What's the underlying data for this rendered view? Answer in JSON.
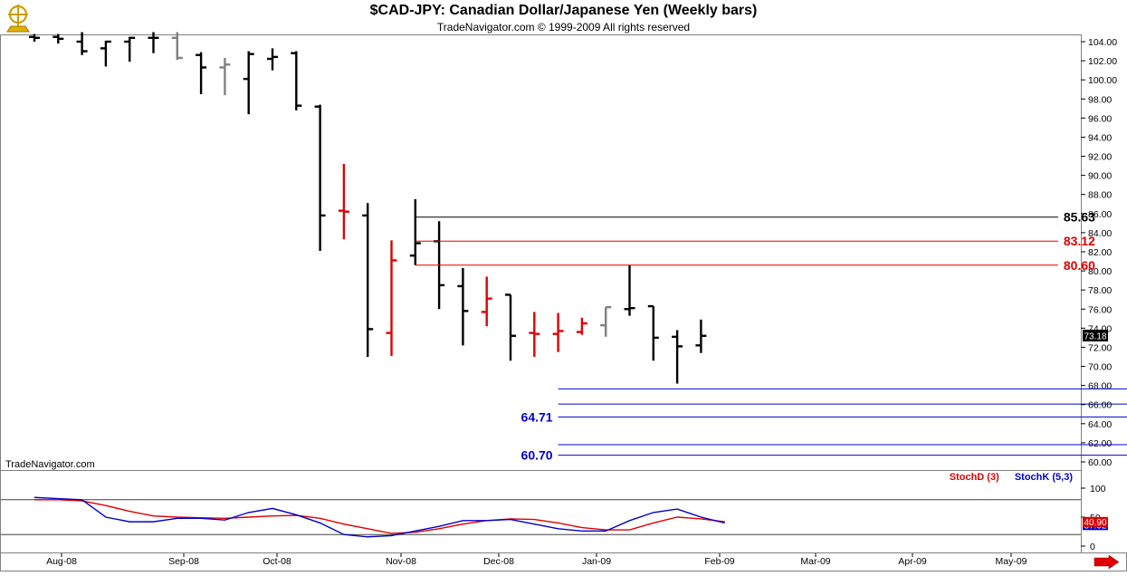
{
  "header": {
    "title": "$CAD-JPY:  Canadian Dollar/Japanese Yen  (Weekly bars)",
    "subtitle": "TradeNavigator.com © 1999-2009 All rights reserved"
  },
  "watermark": "TradeNavigator.com",
  "colors": {
    "up_bar": "#000000",
    "down_bar": "#e00000",
    "neutral_bar": "#808080",
    "fib_black": "#000000",
    "fib_red": "#e00000",
    "fib_blue": "#0000cc",
    "stoch_d": "#e00000",
    "stoch_k": "#0000cc"
  },
  "chart_data": {
    "type": "ohlc",
    "x_labels": [
      "Aug-08",
      "Sep-08",
      "Oct-08",
      "Nov-08",
      "Dec-08",
      "Jan-09",
      "Feb-09",
      "Mar-09",
      "Apr-09",
      "May-09"
    ],
    "ylim": [
      59,
      105
    ],
    "y_ticks": [
      "104.00",
      "102.00",
      "100.00",
      "98.00",
      "96.00",
      "94.00",
      "92.00",
      "90.00",
      "88.00",
      "86.00",
      "84.00",
      "82.00",
      "80.00",
      "78.00",
      "76.00",
      "74.00",
      "72.00",
      "70.00",
      "68.00",
      "66.00",
      "64.00",
      "62.00",
      "60.00"
    ],
    "last_price": "73.18",
    "bars": [
      {
        "o": 104.5,
        "h": 104.8,
        "l": 104.0,
        "c": 104.4,
        "color": "black"
      },
      {
        "o": 104.5,
        "h": 104.8,
        "l": 103.8,
        "c": 104.3,
        "color": "black"
      },
      {
        "o": 104.0,
        "h": 105.0,
        "l": 102.6,
        "c": 103.0,
        "color": "black"
      },
      {
        "o": 103.3,
        "h": 104.1,
        "l": 101.4,
        "c": 104.0,
        "color": "black"
      },
      {
        "o": 104.0,
        "h": 104.5,
        "l": 101.9,
        "c": 104.4,
        "color": "black"
      },
      {
        "o": 104.4,
        "h": 105.0,
        "l": 102.8,
        "c": 104.4,
        "color": "black"
      },
      {
        "o": 104.4,
        "h": 105.0,
        "l": 102.1,
        "c": 102.3,
        "color": "gray"
      },
      {
        "o": 102.6,
        "h": 102.9,
        "l": 98.5,
        "c": 101.3,
        "color": "black"
      },
      {
        "o": 101.3,
        "h": 102.3,
        "l": 98.4,
        "c": 101.6,
        "color": "gray"
      },
      {
        "o": 100.1,
        "h": 103.0,
        "l": 96.4,
        "c": 102.7,
        "color": "black"
      },
      {
        "o": 102.2,
        "h": 103.3,
        "l": 101.0,
        "c": 102.4,
        "color": "black"
      },
      {
        "o": 102.8,
        "h": 103.0,
        "l": 96.8,
        "c": 97.3,
        "color": "black"
      },
      {
        "o": 97.2,
        "h": 97.4,
        "l": 82.1,
        "c": 85.8,
        "color": "black"
      },
      {
        "o": 86.3,
        "h": 91.2,
        "l": 83.3,
        "c": 86.2,
        "color": "red"
      },
      {
        "o": 85.8,
        "h": 87.1,
        "l": 71.0,
        "c": 73.9,
        "color": "black"
      },
      {
        "o": 73.5,
        "h": 83.2,
        "l": 71.1,
        "c": 81.1,
        "color": "red"
      },
      {
        "o": 81.6,
        "h": 87.5,
        "l": 80.6,
        "c": 82.9,
        "color": "black"
      },
      {
        "o": 83.1,
        "h": 85.2,
        "l": 76.0,
        "c": 78.5,
        "color": "black"
      },
      {
        "o": 78.4,
        "h": 80.3,
        "l": 72.2,
        "c": 75.8,
        "color": "black"
      },
      {
        "o": 75.7,
        "h": 79.4,
        "l": 74.2,
        "c": 77.1,
        "color": "red"
      },
      {
        "o": 77.5,
        "h": 77.5,
        "l": 70.6,
        "c": 73.2,
        "color": "black"
      },
      {
        "o": 73.5,
        "h": 75.7,
        "l": 71.0,
        "c": 73.4,
        "color": "red"
      },
      {
        "o": 73.4,
        "h": 75.6,
        "l": 71.5,
        "c": 73.7,
        "color": "red"
      },
      {
        "o": 73.6,
        "h": 75.1,
        "l": 73.3,
        "c": 74.5,
        "color": "red"
      },
      {
        "o": 74.3,
        "h": 76.2,
        "l": 73.1,
        "c": 76.2,
        "color": "gray"
      },
      {
        "o": 76.0,
        "h": 80.6,
        "l": 75.3,
        "c": 76.1,
        "color": "black"
      },
      {
        "o": 76.3,
        "h": 76.3,
        "l": 70.6,
        "c": 73.0,
        "color": "black"
      },
      {
        "o": 73.1,
        "h": 73.8,
        "l": 68.2,
        "c": 72.1,
        "color": "black"
      },
      {
        "o": 72.2,
        "h": 74.9,
        "l": 71.4,
        "c": 73.2,
        "color": "black"
      }
    ],
    "levels": [
      {
        "value": 85.63,
        "label": "85.63",
        "color": "black",
        "from_bar": 16,
        "to_bar": 43,
        "label_side": "right"
      },
      {
        "value": 83.12,
        "label": "83.12",
        "color": "red",
        "from_bar": 16,
        "to_bar": 43,
        "label_side": "right"
      },
      {
        "value": 80.6,
        "label": "80.60",
        "color": "red",
        "from_bar": 16,
        "to_bar": 43,
        "label_side": "right"
      },
      {
        "value": 67.64,
        "label": "67.64",
        "color": "blue",
        "from_bar": 22,
        "to_bar": 46,
        "label_side": "right"
      },
      {
        "value": 66.06,
        "label": "66.06",
        "color": "blue",
        "from_bar": 22,
        "to_bar": 46,
        "label_side": "right"
      },
      {
        "value": 64.71,
        "label": "64.71",
        "color": "blue",
        "from_bar": 22,
        "to_bar": 46,
        "label_side": "left"
      },
      {
        "value": 61.8,
        "label": "61.80",
        "color": "blue",
        "from_bar": 22,
        "to_bar": 46,
        "label_side": "right"
      },
      {
        "value": 60.7,
        "label": "60.70",
        "color": "blue",
        "from_bar": 22,
        "to_bar": 46,
        "label_side": "left"
      }
    ],
    "indicator": {
      "legend": [
        {
          "label": "StochD (3)",
          "color": "red"
        },
        {
          "label": "StochK (5,3)",
          "color": "blue"
        }
      ],
      "ylim": [
        0,
        100
      ],
      "y_ticks": [
        "100",
        "50",
        "0"
      ],
      "y_tick_values": [
        100,
        50,
        0
      ],
      "guide_levels": [
        80,
        20
      ],
      "last_d": "40.90",
      "last_k": "37.02",
      "stoch_d": [
        80,
        80,
        78,
        70,
        60,
        52,
        50,
        49,
        48,
        50,
        52,
        53,
        48,
        38,
        30,
        22,
        24,
        30,
        38,
        44,
        47,
        46,
        40,
        32,
        28,
        28,
        40,
        50,
        47,
        42
      ],
      "stoch_k": [
        84,
        82,
        80,
        50,
        42,
        42,
        48,
        48,
        45,
        58,
        65,
        54,
        40,
        20,
        16,
        18,
        26,
        34,
        44,
        44,
        46,
        38,
        30,
        26,
        26,
        44,
        58,
        64,
        50,
        40
      ]
    }
  }
}
